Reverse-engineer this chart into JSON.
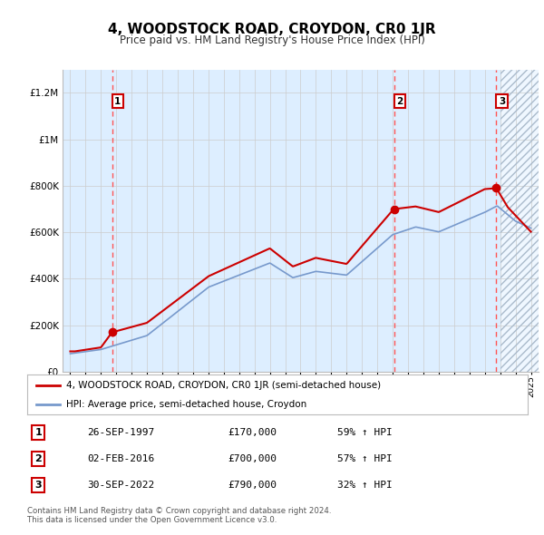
{
  "title": "4, WOODSTOCK ROAD, CROYDON, CR0 1JR",
  "subtitle": "Price paid vs. HM Land Registry's House Price Index (HPI)",
  "sale_dates_num": [
    1997.73,
    2016.09,
    2022.75
  ],
  "sale_prices": [
    170000,
    700000,
    790000
  ],
  "sale_labels": [
    "1",
    "2",
    "3"
  ],
  "red_line_color": "#cc0000",
  "blue_line_color": "#7799cc",
  "hpi_fill_color": "#ddeeff",
  "vline_color": "#ff5555",
  "sale_marker_color": "#cc0000",
  "legend_entries": [
    "4, WOODSTOCK ROAD, CROYDON, CR0 1JR (semi-detached house)",
    "HPI: Average price, semi-detached house, Croydon"
  ],
  "table_rows": [
    [
      "1",
      "26-SEP-1997",
      "£170,000",
      "59% ↑ HPI"
    ],
    [
      "2",
      "02-FEB-2016",
      "£700,000",
      "57% ↑ HPI"
    ],
    [
      "3",
      "30-SEP-2022",
      "£790,000",
      "32% ↑ HPI"
    ]
  ],
  "footnote1": "Contains HM Land Registry data © Crown copyright and database right 2024.",
  "footnote2": "This data is licensed under the Open Government Licence v3.0.",
  "ylim": [
    0,
    1300000
  ],
  "yticks": [
    0,
    200000,
    400000,
    600000,
    800000,
    1000000,
    1200000
  ],
  "ytick_labels": [
    "£0",
    "£200K",
    "£400K",
    "£600K",
    "£800K",
    "£1M",
    "£1.2M"
  ],
  "xmin": 1994.5,
  "xmax": 2025.5,
  "future_start": 2023.0
}
